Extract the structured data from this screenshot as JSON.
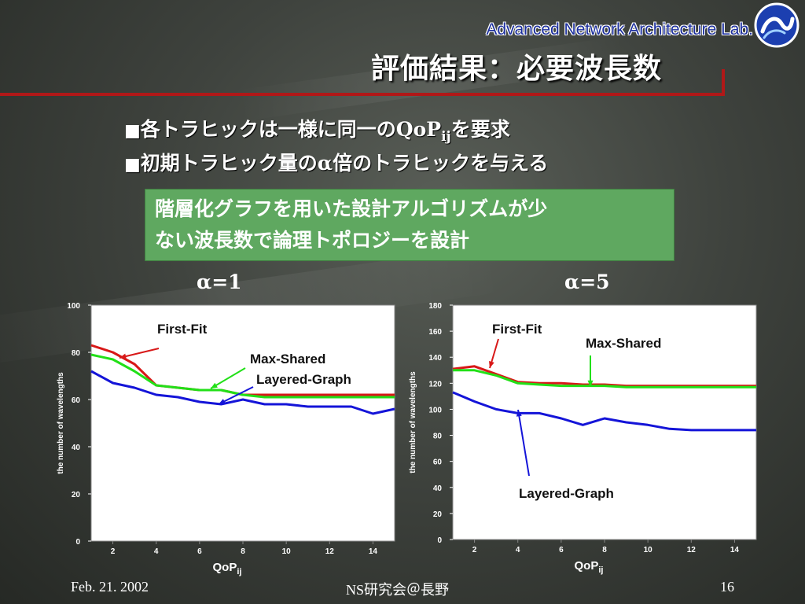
{
  "header": {
    "lab_name": "Advanced Network Architecture Lab.",
    "title": "評価結果：必要波長数"
  },
  "bullets": [
    {
      "marker": "■",
      "text_before": "各トラヒックは一様に同一の",
      "emph": "QoP",
      "sub": "ij",
      "text_after": "を要求"
    },
    {
      "marker": "■",
      "text_before": "初期トラヒック量の",
      "emph": "α",
      "sub": "",
      "text_after": "倍のトラヒックを与える"
    }
  ],
  "note": {
    "line1": "階層化グラフを用いた設計アルゴリズムが少",
    "line2": "ない波長数で論理トポロジーを設計"
  },
  "footer": {
    "date": "Feb. 21. 2002",
    "venue": "NS研究会＠長野",
    "page": "16"
  },
  "colors": {
    "first_fit": "#d81818",
    "max_shared": "#22e018",
    "layered_graph": "#1414d8",
    "note_bg": "#5fa860",
    "title_rule": "#b01818"
  },
  "chart_data": [
    {
      "type": "line",
      "title": "α=1",
      "xlabel": "QoP",
      "xlabel_sub": "ij",
      "ylabel": "the number of wavelengths",
      "xlim": [
        1,
        15
      ],
      "ylim": [
        0,
        100
      ],
      "xticks": [
        2,
        4,
        6,
        8,
        10,
        12,
        14
      ],
      "yticks": [
        0,
        20,
        40,
        60,
        80,
        100
      ],
      "x": [
        1,
        2,
        3,
        4,
        5,
        6,
        7,
        8,
        9,
        10,
        11,
        12,
        13,
        14,
        15
      ],
      "series": [
        {
          "name": "First-Fit",
          "color": "#d81818",
          "values": [
            83,
            80,
            75,
            66,
            65,
            64,
            64,
            62,
            62,
            62,
            62,
            62,
            62,
            62,
            62
          ]
        },
        {
          "name": "Max-Shared",
          "color": "#22e018",
          "values": [
            79,
            77,
            72,
            66,
            65,
            64,
            64,
            62,
            61,
            61,
            61,
            61,
            61,
            61,
            61
          ]
        },
        {
          "name": "Layered-Graph",
          "color": "#1414d8",
          "values": [
            72,
            67,
            65,
            62,
            61,
            59,
            58,
            60,
            58,
            58,
            57,
            57,
            57,
            54,
            56
          ]
        }
      ],
      "annotations": [
        {
          "text": "First-Fit",
          "series": "First-Fit"
        },
        {
          "text": "Max-Shared",
          "series": "Max-Shared"
        },
        {
          "text": "Layered-Graph",
          "series": "Layered-Graph"
        }
      ]
    },
    {
      "type": "line",
      "title": "α=5",
      "xlabel": "QoP",
      "xlabel_sub": "ij",
      "ylabel": "the number of wavelengths",
      "xlim": [
        1,
        15
      ],
      "ylim": [
        0,
        180
      ],
      "xticks": [
        2,
        4,
        6,
        8,
        10,
        12,
        14
      ],
      "yticks": [
        0,
        20,
        40,
        60,
        80,
        100,
        120,
        140,
        160,
        180
      ],
      "x": [
        1,
        2,
        3,
        4,
        5,
        6,
        7,
        8,
        9,
        10,
        11,
        12,
        13,
        14,
        15
      ],
      "series": [
        {
          "name": "First-Fit",
          "color": "#d81818",
          "values": [
            131,
            133,
            127,
            121,
            120,
            120,
            119,
            119,
            118,
            118,
            118,
            118,
            118,
            118,
            118
          ]
        },
        {
          "name": "Max-Shared",
          "color": "#22e018",
          "values": [
            130,
            130,
            126,
            120,
            119,
            118,
            118,
            118,
            117,
            117,
            117,
            117,
            117,
            117,
            117
          ]
        },
        {
          "name": "Layered-Graph",
          "color": "#1414d8",
          "values": [
            113,
            106,
            100,
            97,
            97,
            93,
            88,
            93,
            90,
            88,
            85,
            84,
            84,
            84,
            84
          ]
        }
      ],
      "annotations": [
        {
          "text": "First-Fit",
          "series": "First-Fit"
        },
        {
          "text": "Max-Shared",
          "series": "Max-Shared"
        },
        {
          "text": "Layered-Graph",
          "series": "Layered-Graph"
        }
      ]
    }
  ]
}
